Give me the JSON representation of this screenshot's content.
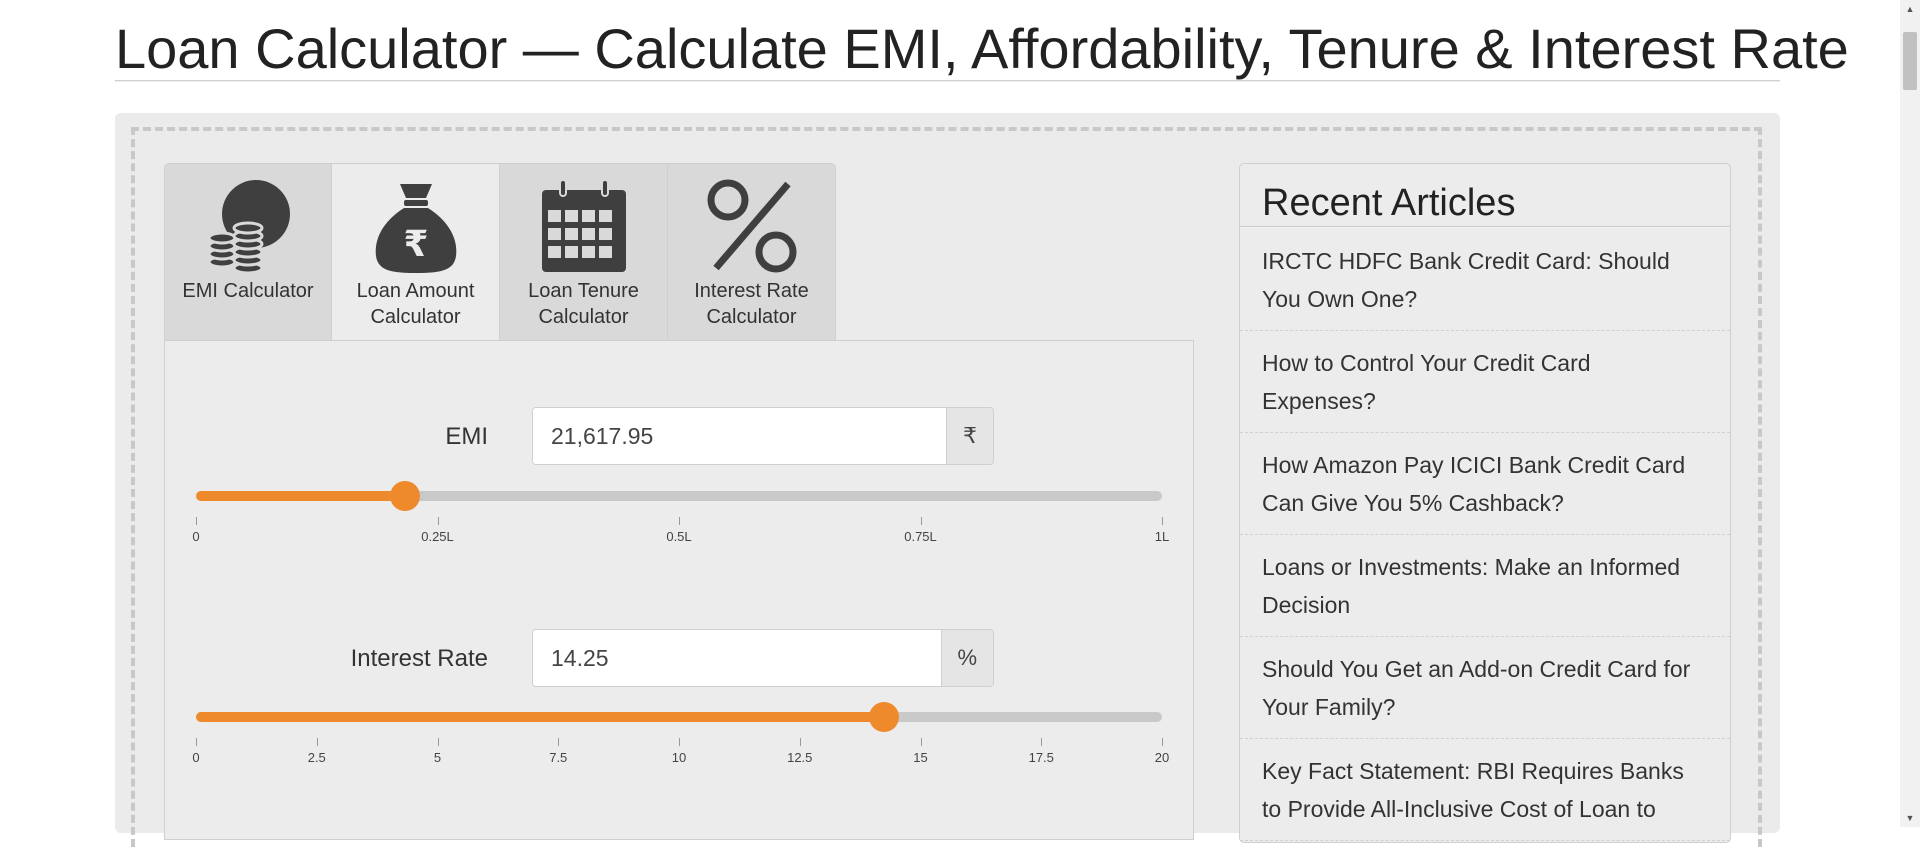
{
  "page": {
    "title": "Loan Calculator — Calculate EMI, Affordability, Tenure & Interest Rate"
  },
  "tabs": [
    {
      "label": "EMI Calculator",
      "icon": "coins-icon",
      "active": false
    },
    {
      "label": "Loan Amount Calculator",
      "icon": "money-bag-rupee-icon",
      "active": true
    },
    {
      "label": "Loan Tenure Calculator",
      "icon": "calendar-icon",
      "active": false
    },
    {
      "label": "Interest Rate Calculator",
      "icon": "percent-icon",
      "active": false
    }
  ],
  "emi": {
    "label": "EMI",
    "value": "21,617.95",
    "unit": "₹",
    "slider": {
      "min": 0,
      "max": 100000,
      "value": 21617.95,
      "ticks": [
        "0",
        "0.25L",
        "0.5L",
        "0.75L",
        "1L"
      ]
    }
  },
  "interest": {
    "label": "Interest Rate",
    "value": "14.25",
    "unit": "%",
    "slider": {
      "min": 0,
      "max": 20,
      "value": 14.25,
      "ticks": [
        "0",
        "2.5",
        "5",
        "7.5",
        "10",
        "12.5",
        "15",
        "17.5",
        "20"
      ]
    }
  },
  "sidebar": {
    "title": "Recent Articles",
    "articles": [
      "IRCTC HDFC Bank Credit Card: Should You Own One?",
      "How to Control Your Credit Card Expenses?",
      "How Amazon Pay ICICI Bank Credit Card Can Give You 5% Cashback?",
      "Loans or Investments: Make an Informed Decision",
      "Should You Get an Add-on Credit Card for Your Family?",
      "Key Fact Statement: RBI Requires Banks to Provide All-Inclusive Cost of Loan to"
    ]
  },
  "colors": {
    "accent": "#ef8a2c",
    "icon": "#3f3f3f"
  }
}
